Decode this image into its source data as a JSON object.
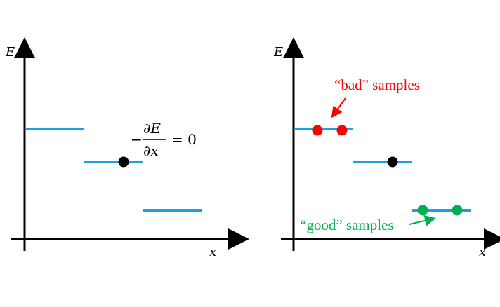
{
  "colors": {
    "level": "#1BA1E2",
    "bad": "#FF0000",
    "good": "#00B050",
    "point": "#000000",
    "axis": "#000000"
  },
  "left_panel": {
    "y_axis_label": "E",
    "x_axis_label": "x",
    "equation": {
      "minus": "−",
      "numerator": "∂E",
      "denominator": "∂x",
      "rhs": "= 0"
    }
  },
  "right_panel": {
    "y_axis_label": "E",
    "x_axis_label": "x",
    "bad_label": "“bad” samples",
    "good_label": "“good” samples"
  }
}
